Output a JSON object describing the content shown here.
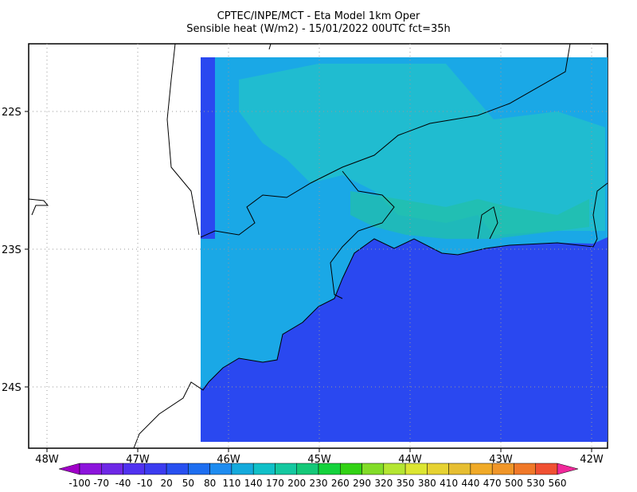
{
  "header": {
    "title": "CPTEC/INPE/MCT -  Eta Model 1km Oper",
    "subtitle": "Sensible heat (W/m2) - 15/01/2022 00UTC fct=35h"
  },
  "map": {
    "lat_labels": [
      "22S",
      "23S",
      "24S"
    ],
    "lon_labels": [
      "48W",
      "47W",
      "46W",
      "45W",
      "44W",
      "43W",
      "42W"
    ]
  },
  "colorbar": {
    "labels": [
      -100,
      -70,
      -40,
      -10,
      20,
      50,
      80,
      110,
      140,
      170,
      200,
      230,
      260,
      290,
      320,
      350,
      380,
      410,
      440,
      470,
      500,
      530,
      560
    ],
    "colors": [
      "#a000c8",
      "#8c14dc",
      "#6e28e6",
      "#5032f0",
      "#3c3cf0",
      "#2850f0",
      "#1e6ef0",
      "#1e8cf0",
      "#14aadc",
      "#10c0c8",
      "#14c8a0",
      "#14c878",
      "#14d23c",
      "#32d214",
      "#82dc28",
      "#b4e632",
      "#dce632",
      "#e6d232",
      "#e6be32",
      "#f0aa28",
      "#f09628",
      "#f07828",
      "#f05032",
      "#f03c46",
      "#f0289a"
    ]
  }
}
